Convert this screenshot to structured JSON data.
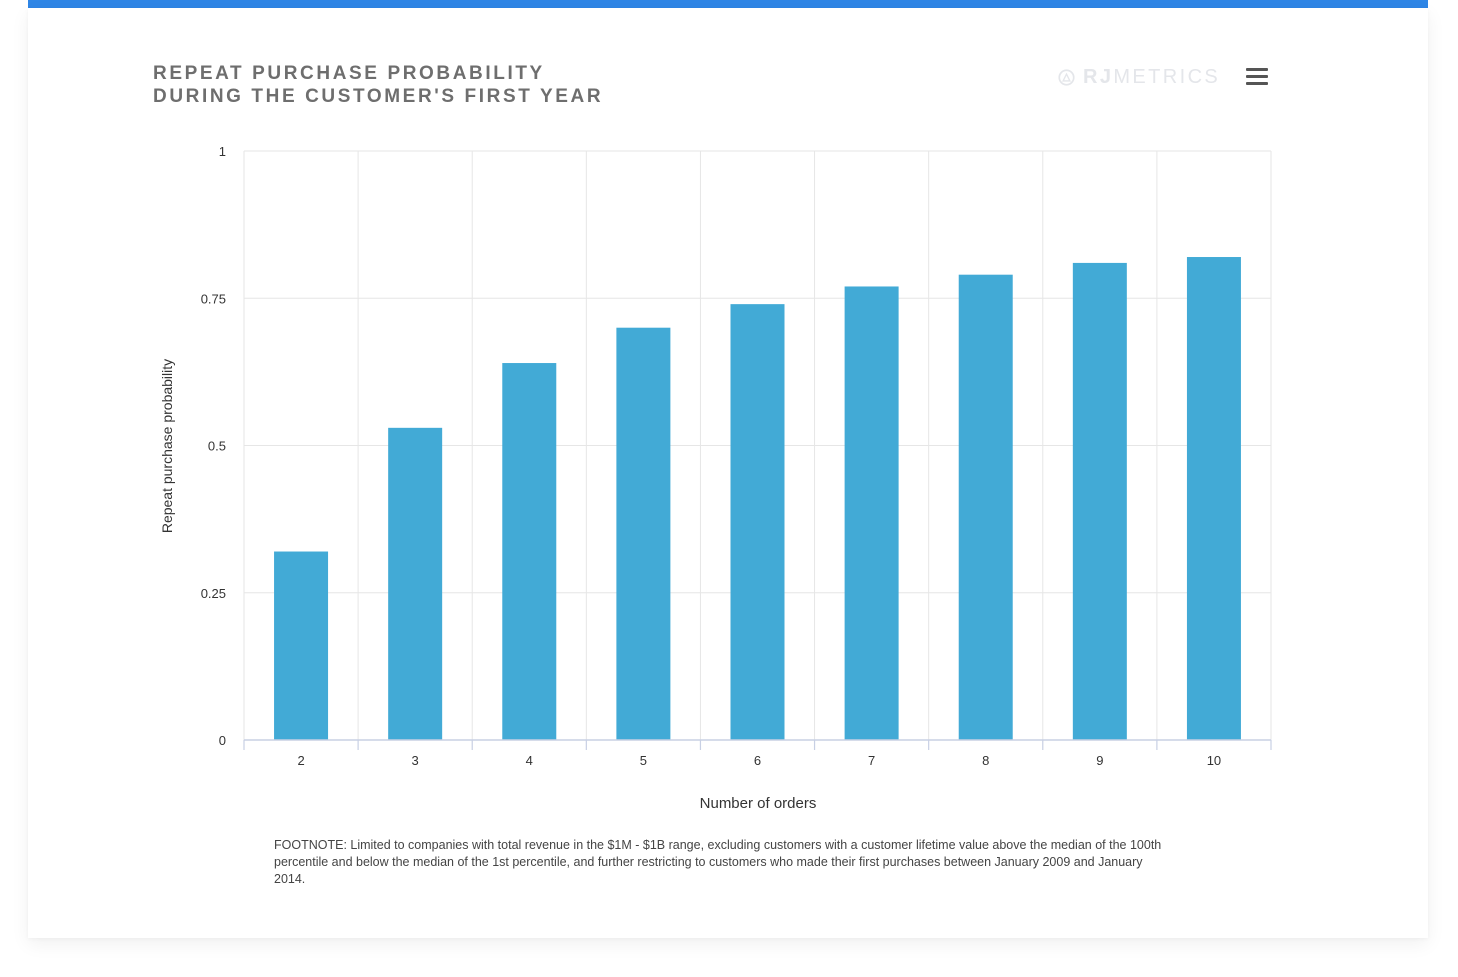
{
  "chart_title": {
    "line1": "REPEAT PURCHASE PROBABILITY",
    "line2": "DURING THE CUSTOMER'S FIRST YEAR"
  },
  "brand": {
    "rj": "RJ",
    "metrics": "METRICS",
    "icon": "rjmetrics-logo-icon"
  },
  "menu": {
    "icon": "hamburger-menu-icon"
  },
  "colors": {
    "accent_bar": "#2f86e6",
    "bar": "#42aad6",
    "grid": "#e6e6e6"
  },
  "chart_data": {
    "type": "bar",
    "title": "REPEAT PURCHASE PROBABILITY DURING THE CUSTOMER'S FIRST YEAR",
    "xlabel": "Number of orders",
    "ylabel": "Repeat purchase probability",
    "categories": [
      "2",
      "3",
      "4",
      "5",
      "6",
      "7",
      "8",
      "9",
      "10"
    ],
    "values": [
      0.32,
      0.53,
      0.64,
      0.7,
      0.74,
      0.77,
      0.79,
      0.81,
      0.82
    ],
    "ylim": [
      0,
      1
    ],
    "yticks": [
      0,
      0.25,
      0.5,
      0.75,
      1
    ],
    "ytick_labels": [
      "0",
      "0.25",
      "0.5",
      "0.75",
      "1"
    ],
    "grid": true,
    "legend": "none"
  },
  "footnote": "FOOTNOTE: Limited to companies with total revenue in the $1M - $1B range, excluding customers with a customer lifetime value above the median of the 100th percentile and below the median of the 1st percentile, and further restricting to customers who made their first purchases between January 2009 and January 2014."
}
